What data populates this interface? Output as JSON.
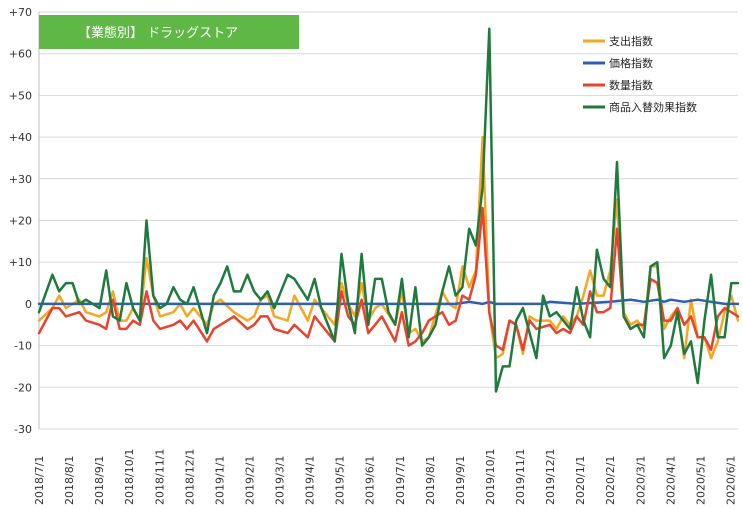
{
  "chart_data": {
    "type": "line",
    "title": "【業態別】 ドラッグストア",
    "title_box_color": "#5fb846",
    "ylim": [
      -30,
      70
    ],
    "y_ticks": [
      {
        "value": 70,
        "label": "+70"
      },
      {
        "value": 60,
        "label": "+60"
      },
      {
        "value": 50,
        "label": "+50"
      },
      {
        "value": 40,
        "label": "+40"
      },
      {
        "value": 30,
        "label": "+30"
      },
      {
        "value": 20,
        "label": "+20"
      },
      {
        "value": 10,
        "label": "+10"
      },
      {
        "value": 0,
        "label": "0"
      },
      {
        "value": -10,
        "label": "-10"
      },
      {
        "value": -20,
        "label": "-20"
      },
      {
        "value": -30,
        "label": "-30"
      }
    ],
    "x_tick_labels": [
      "2018/7/1",
      "2018/8/1",
      "2018/9/1",
      "2018/10/1",
      "2018/11/1",
      "2018/12/1",
      "2019/1/1",
      "2019/2/1",
      "2019/3/1",
      "2019/4/1",
      "2019/5/1",
      "2019/6/1",
      "2019/7/1",
      "2019/8/1",
      "2019/9/1",
      "2019/10/1",
      "2019/11/1",
      "2019/12/1",
      "2020/1/1",
      "2020/2/1",
      "2020/3/1",
      "2020/4/1",
      "2020/5/1",
      "2020/6/1"
    ],
    "x_range_weeks": [
      0,
      104
    ],
    "grid": "horizontal",
    "legend_position": "top-right",
    "series": [
      {
        "name": "支出指数",
        "color": "#f5a623",
        "values": [
          [
            0,
            -4
          ],
          [
            2,
            -1
          ],
          [
            3,
            2
          ],
          [
            4,
            -1
          ],
          [
            6,
            1
          ],
          [
            7,
            -2
          ],
          [
            9,
            -3
          ],
          [
            10,
            -2
          ],
          [
            11,
            3
          ],
          [
            12,
            -4
          ],
          [
            13,
            -4
          ],
          [
            14,
            -1
          ],
          [
            15,
            -4
          ],
          [
            16,
            11
          ],
          [
            17,
            2
          ],
          [
            18,
            -3
          ],
          [
            20,
            -2
          ],
          [
            21,
            0
          ],
          [
            22,
            -3
          ],
          [
            23,
            -1
          ],
          [
            25,
            -5
          ],
          [
            26,
            0
          ],
          [
            27,
            1
          ],
          [
            29,
            -2
          ],
          [
            31,
            -4
          ],
          [
            32,
            -3
          ],
          [
            33,
            1
          ],
          [
            34,
            2
          ],
          [
            35,
            -3
          ],
          [
            37,
            -4
          ],
          [
            38,
            2
          ],
          [
            40,
            -4
          ],
          [
            41,
            1
          ],
          [
            42,
            -1
          ],
          [
            44,
            -5
          ],
          [
            45,
            5
          ],
          [
            46,
            0
          ],
          [
            47,
            -3
          ],
          [
            48,
            5
          ],
          [
            49,
            -4
          ],
          [
            50,
            -1
          ],
          [
            51,
            0
          ],
          [
            53,
            -5
          ],
          [
            54,
            3
          ],
          [
            55,
            -7
          ],
          [
            56,
            -6
          ],
          [
            57,
            -9
          ],
          [
            58,
            -8
          ],
          [
            60,
            3
          ],
          [
            61,
            0
          ],
          [
            62,
            -1
          ],
          [
            63,
            9
          ],
          [
            64,
            4
          ],
          [
            65,
            8
          ],
          [
            66,
            40
          ],
          [
            67,
            -2
          ],
          [
            68,
            -13
          ],
          [
            69,
            -12
          ],
          [
            70,
            -4
          ],
          [
            71,
            -5
          ],
          [
            72,
            -12
          ],
          [
            73,
            -3
          ],
          [
            74,
            -4
          ],
          [
            76,
            -4
          ],
          [
            77,
            -6
          ],
          [
            78,
            -3
          ],
          [
            79,
            -5
          ],
          [
            80,
            -3
          ],
          [
            81,
            2
          ],
          [
            82,
            8
          ],
          [
            83,
            2
          ],
          [
            84,
            2
          ],
          [
            85,
            8
          ],
          [
            86,
            25
          ],
          [
            87,
            -2
          ],
          [
            88,
            -5
          ],
          [
            89,
            -4
          ],
          [
            90,
            -6
          ],
          [
            91,
            9
          ],
          [
            92,
            9
          ],
          [
            93,
            -6
          ],
          [
            94,
            -3
          ],
          [
            95,
            -1
          ],
          [
            96,
            -13
          ],
          [
            97,
            1
          ],
          [
            98,
            -8
          ],
          [
            99,
            -8
          ],
          [
            100,
            -13
          ],
          [
            101,
            -9
          ],
          [
            102,
            -2
          ],
          [
            103,
            2
          ],
          [
            104,
            -4
          ]
        ]
      },
      {
        "name": "価格指数",
        "color": "#2e5fb5",
        "values": [
          [
            0,
            0
          ],
          [
            20,
            0
          ],
          [
            40,
            0
          ],
          [
            58,
            0
          ],
          [
            62,
            0
          ],
          [
            64,
            0.5
          ],
          [
            66,
            0
          ],
          [
            67,
            0.5
          ],
          [
            68,
            0
          ],
          [
            75,
            0
          ],
          [
            76,
            0.5
          ],
          [
            80,
            0
          ],
          [
            85,
            0.5
          ],
          [
            88,
            1
          ],
          [
            90,
            0.5
          ],
          [
            92,
            1
          ],
          [
            93,
            0.5
          ],
          [
            94,
            1
          ],
          [
            96,
            0.5
          ],
          [
            98,
            1
          ],
          [
            100,
            0.5
          ],
          [
            102,
            0
          ],
          [
            104,
            0
          ]
        ]
      },
      {
        "name": "数量指数",
        "color": "#e8432d",
        "values": [
          [
            0,
            -7
          ],
          [
            2,
            -1
          ],
          [
            3,
            -1
          ],
          [
            4,
            -3
          ],
          [
            6,
            -2
          ],
          [
            7,
            -4
          ],
          [
            9,
            -5
          ],
          [
            10,
            -6
          ],
          [
            11,
            1
          ],
          [
            12,
            -6
          ],
          [
            13,
            -6
          ],
          [
            14,
            -4
          ],
          [
            15,
            -5
          ],
          [
            16,
            3
          ],
          [
            17,
            -4
          ],
          [
            18,
            -6
          ],
          [
            20,
            -5
          ],
          [
            21,
            -4
          ],
          [
            22,
            -6
          ],
          [
            23,
            -4
          ],
          [
            25,
            -9
          ],
          [
            26,
            -6
          ],
          [
            27,
            -5
          ],
          [
            29,
            -3
          ],
          [
            31,
            -6
          ],
          [
            32,
            -5
          ],
          [
            33,
            -3
          ],
          [
            34,
            -3
          ],
          [
            35,
            -6
          ],
          [
            37,
            -7
          ],
          [
            38,
            -5
          ],
          [
            40,
            -8
          ],
          [
            41,
            -3
          ],
          [
            42,
            -5
          ],
          [
            44,
            -9
          ],
          [
            45,
            3
          ],
          [
            46,
            -3
          ],
          [
            47,
            -5
          ],
          [
            48,
            1
          ],
          [
            49,
            -7
          ],
          [
            50,
            -5
          ],
          [
            51,
            -3
          ],
          [
            53,
            -9
          ],
          [
            54,
            -2
          ],
          [
            55,
            -10
          ],
          [
            56,
            -9
          ],
          [
            57,
            -7
          ],
          [
            58,
            -4
          ],
          [
            60,
            -2
          ],
          [
            61,
            -5
          ],
          [
            62,
            -4
          ],
          [
            63,
            2
          ],
          [
            64,
            1
          ],
          [
            65,
            7
          ],
          [
            66,
            23
          ],
          [
            67,
            -2
          ],
          [
            68,
            -10
          ],
          [
            69,
            -11
          ],
          [
            70,
            -4
          ],
          [
            71,
            -5
          ],
          [
            72,
            -11
          ],
          [
            73,
            -4
          ],
          [
            74,
            -6
          ],
          [
            76,
            -5
          ],
          [
            77,
            -7
          ],
          [
            78,
            -6
          ],
          [
            79,
            -7
          ],
          [
            80,
            -3
          ],
          [
            81,
            -5
          ],
          [
            82,
            3
          ],
          [
            83,
            -2
          ],
          [
            84,
            -2
          ],
          [
            85,
            -1
          ],
          [
            86,
            18
          ],
          [
            87,
            -3
          ],
          [
            88,
            -6
          ],
          [
            89,
            -5
          ],
          [
            90,
            -5
          ],
          [
            91,
            6
          ],
          [
            92,
            5
          ],
          [
            93,
            -4
          ],
          [
            94,
            -4
          ],
          [
            95,
            -1
          ],
          [
            96,
            -5
          ],
          [
            97,
            -3
          ],
          [
            98,
            -8
          ],
          [
            99,
            -8
          ],
          [
            100,
            -11
          ],
          [
            101,
            -3
          ],
          [
            102,
            -1
          ],
          [
            103,
            -2
          ],
          [
            104,
            -3
          ]
        ]
      },
      {
        "name": "商品入替効果指数",
        "color": "#1f7a3e",
        "values": [
          [
            0,
            -2
          ],
          [
            2,
            7
          ],
          [
            3,
            3
          ],
          [
            4,
            5
          ],
          [
            5,
            5
          ],
          [
            6,
            0
          ],
          [
            7,
            1
          ],
          [
            9,
            -1
          ],
          [
            10,
            8
          ],
          [
            11,
            -3
          ],
          [
            12,
            -4
          ],
          [
            13,
            5
          ],
          [
            14,
            -1
          ],
          [
            15,
            -4
          ],
          [
            16,
            20
          ],
          [
            17,
            2
          ],
          [
            18,
            -1
          ],
          [
            19,
            0
          ],
          [
            20,
            4
          ],
          [
            21,
            1
          ],
          [
            22,
            0
          ],
          [
            23,
            4
          ],
          [
            25,
            -7
          ],
          [
            26,
            2
          ],
          [
            27,
            5
          ],
          [
            28,
            9
          ],
          [
            29,
            3
          ],
          [
            30,
            3
          ],
          [
            31,
            7
          ],
          [
            32,
            3
          ],
          [
            33,
            1
          ],
          [
            34,
            3
          ],
          [
            35,
            -1
          ],
          [
            37,
            7
          ],
          [
            38,
            6
          ],
          [
            40,
            1
          ],
          [
            41,
            6
          ],
          [
            42,
            -1
          ],
          [
            44,
            -9
          ],
          [
            45,
            12
          ],
          [
            46,
            0
          ],
          [
            47,
            -7
          ],
          [
            48,
            12
          ],
          [
            49,
            -5
          ],
          [
            50,
            6
          ],
          [
            51,
            6
          ],
          [
            52,
            -2
          ],
          [
            53,
            -5
          ],
          [
            54,
            6
          ],
          [
            55,
            -8
          ],
          [
            56,
            4
          ],
          [
            57,
            -10
          ],
          [
            58,
            -8
          ],
          [
            59,
            -5
          ],
          [
            60,
            3
          ],
          [
            61,
            9
          ],
          [
            62,
            2
          ],
          [
            63,
            4
          ],
          [
            64,
            18
          ],
          [
            65,
            14
          ],
          [
            66,
            28
          ],
          [
            67,
            66
          ],
          [
            68,
            -21
          ],
          [
            69,
            -15
          ],
          [
            70,
            -15
          ],
          [
            71,
            -4
          ],
          [
            72,
            -1
          ],
          [
            73,
            -7
          ],
          [
            74,
            -13
          ],
          [
            75,
            2
          ],
          [
            76,
            -3
          ],
          [
            77,
            -2
          ],
          [
            78,
            -4
          ],
          [
            79,
            -6
          ],
          [
            80,
            4
          ],
          [
            81,
            -4
          ],
          [
            82,
            -8
          ],
          [
            83,
            13
          ],
          [
            84,
            6
          ],
          [
            85,
            4
          ],
          [
            86,
            34
          ],
          [
            87,
            -3
          ],
          [
            88,
            -6
          ],
          [
            89,
            -5
          ],
          [
            90,
            -8
          ],
          [
            91,
            9
          ],
          [
            92,
            10
          ],
          [
            93,
            -13
          ],
          [
            94,
            -10
          ],
          [
            95,
            -2
          ],
          [
            96,
            -12
          ],
          [
            97,
            -9
          ],
          [
            98,
            -19
          ],
          [
            99,
            -4
          ],
          [
            100,
            7
          ],
          [
            101,
            -8
          ],
          [
            102,
            -8
          ],
          [
            103,
            5
          ],
          [
            104,
            5
          ]
        ]
      }
    ]
  }
}
